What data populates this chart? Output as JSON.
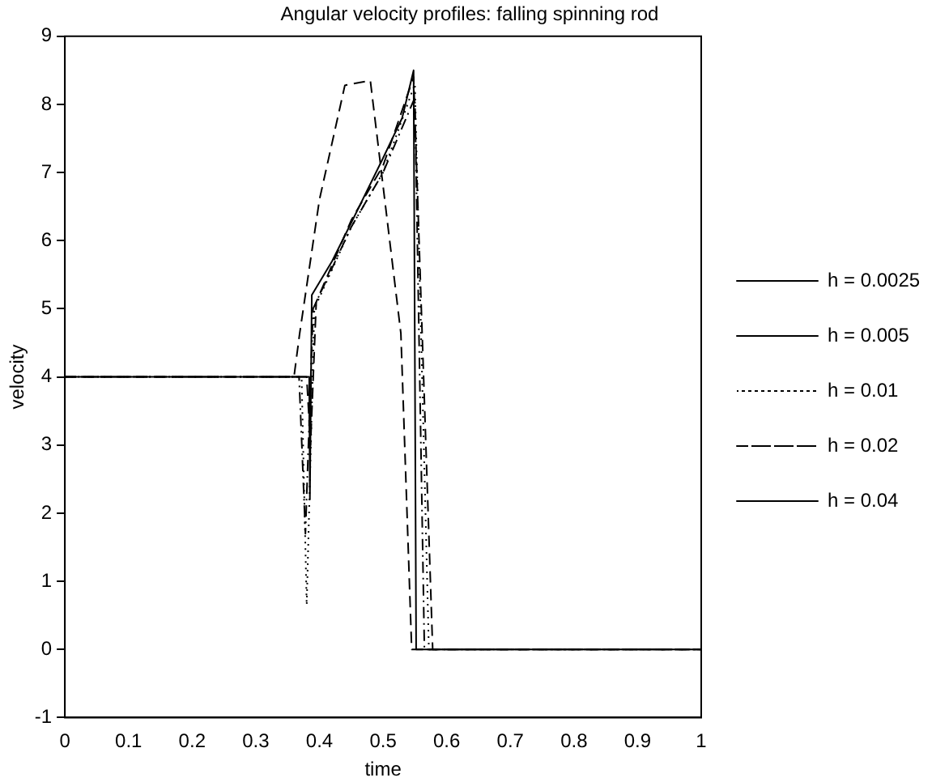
{
  "chart_data": {
    "type": "line",
    "title": "Angular velocity profiles: falling spinning rod",
    "xlabel": "time",
    "ylabel": "velocity",
    "xlim": [
      0,
      1
    ],
    "ylim": [
      -1,
      9
    ],
    "xticks": [
      0,
      0.1,
      0.2,
      0.3,
      0.4,
      0.5,
      0.6,
      0.7,
      0.8,
      0.9,
      1
    ],
    "yticks": [
      -1,
      0,
      1,
      2,
      3,
      4,
      5,
      6,
      7,
      8,
      9
    ],
    "grid": false,
    "legend": "right",
    "marker": "none",
    "series": [
      {
        "name": "h = 0.0025",
        "color": "#000000",
        "line_style": "solid",
        "x": [
          0,
          0.384,
          0.385,
          0.388,
          0.42,
          0.452,
          0.4994,
          0.53,
          0.548,
          0.552,
          1
        ],
        "values": [
          4,
          4,
          2.2,
          5.2,
          5.7,
          6.3,
          7.2,
          7.8,
          8.5,
          0,
          0
        ]
      },
      {
        "name": "h = 0.005",
        "color": "#000000",
        "line_style": "dashed",
        "x": [
          0,
          0.38,
          0.386,
          0.395,
          0.45,
          0.5,
          0.548,
          0.578,
          1
        ],
        "values": [
          4,
          4,
          3,
          5.1,
          6.3,
          7.1,
          8.4,
          0,
          0
        ]
      },
      {
        "name": "h = 0.01",
        "color": "#000000",
        "line_style": "dotted",
        "x": [
          0,
          0.372,
          0.38,
          0.392,
          0.45,
          0.5,
          0.55,
          0.572,
          1
        ],
        "values": [
          4,
          4,
          0.65,
          5,
          6.2,
          7,
          8.3,
          0,
          0
        ]
      },
      {
        "name": "h = 0.02",
        "color": "#000000",
        "line_style": "dashdot",
        "x": [
          0,
          0.368,
          0.378,
          0.39,
          0.45,
          0.5,
          0.55,
          0.565,
          1
        ],
        "values": [
          4,
          4,
          1.7,
          5,
          6.2,
          7,
          8.1,
          0,
          0
        ]
      },
      {
        "name": "h = 0.04",
        "color": "#000000",
        "line_style": "dashed",
        "x": [
          0,
          0.36,
          0.369,
          0.4,
          0.44,
          0.48,
          0.528,
          0.545,
          1
        ],
        "values": [
          4,
          4,
          4.64,
          6.6,
          8.28,
          8.35,
          4.64,
          0,
          0
        ]
      }
    ]
  }
}
